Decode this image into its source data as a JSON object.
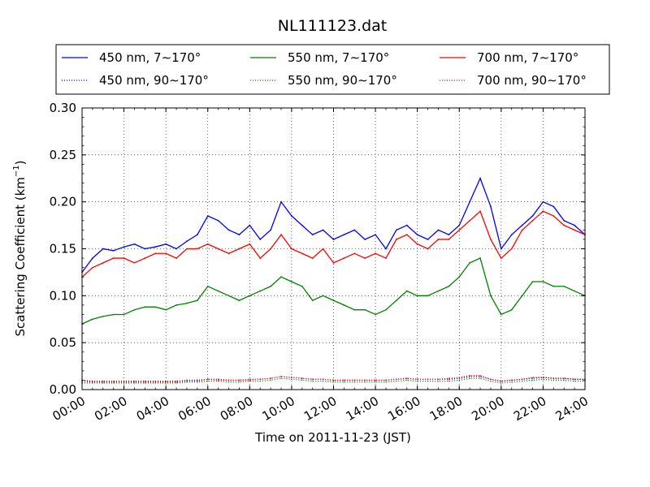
{
  "chart_data": {
    "type": "line",
    "title": "NL111123.dat",
    "xlabel": "Time on 2011-11-23 (JST)",
    "ylabel": "Scattering Coefficient (km",
    "ylabel_sup": "−1",
    "ylabel_tail": ")",
    "xlim": [
      0,
      24
    ],
    "ylim": [
      0,
      0.3
    ],
    "x_unit": "hours",
    "grid": true,
    "grid_style": "dotted",
    "legend_placement": "top, above plot, 3 columns",
    "x_ticks": [
      {
        "value": 0,
        "label": "00:00"
      },
      {
        "value": 2,
        "label": "02:00"
      },
      {
        "value": 4,
        "label": "04:00"
      },
      {
        "value": 6,
        "label": "06:00"
      },
      {
        "value": 8,
        "label": "08:00"
      },
      {
        "value": 10,
        "label": "10:00"
      },
      {
        "value": 12,
        "label": "12:00"
      },
      {
        "value": 14,
        "label": "14:00"
      },
      {
        "value": 16,
        "label": "16:00"
      },
      {
        "value": 18,
        "label": "18:00"
      },
      {
        "value": 20,
        "label": "20:00"
      },
      {
        "value": 22,
        "label": "22:00"
      },
      {
        "value": 24,
        "label": "24:00"
      }
    ],
    "y_ticks": [
      {
        "value": 0,
        "label": "0.00"
      },
      {
        "value": 0.05,
        "label": "0.05"
      },
      {
        "value": 0.1,
        "label": "0.10"
      },
      {
        "value": 0.15,
        "label": "0.15"
      },
      {
        "value": 0.2,
        "label": "0.20"
      },
      {
        "value": 0.25,
        "label": "0.25"
      },
      {
        "value": 0.3,
        "label": "0.30"
      }
    ],
    "x": [
      0,
      0.5,
      1,
      1.5,
      2,
      2.5,
      3,
      3.5,
      4,
      4.5,
      5,
      5.5,
      6,
      6.5,
      7,
      7.5,
      8,
      8.5,
      9,
      9.5,
      10,
      10.5,
      11,
      11.5,
      12,
      12.5,
      13,
      13.5,
      14,
      14.5,
      15,
      15.5,
      16,
      16.5,
      17,
      17.5,
      18,
      18.5,
      19,
      19.5,
      20,
      20.5,
      21,
      21.5,
      22,
      22.5,
      23,
      23.5,
      24
    ],
    "series": [
      {
        "name": "450 nm, 7∼170°",
        "color": "#0000ff",
        "style": "solid",
        "values": [
          0.125,
          0.14,
          0.15,
          0.148,
          0.152,
          0.155,
          0.15,
          0.152,
          0.155,
          0.15,
          0.158,
          0.165,
          0.185,
          0.18,
          0.17,
          0.165,
          0.175,
          0.16,
          0.17,
          0.2,
          0.185,
          0.175,
          0.165,
          0.17,
          0.16,
          0.165,
          0.17,
          0.16,
          0.165,
          0.15,
          0.17,
          0.175,
          0.165,
          0.16,
          0.17,
          0.165,
          0.175,
          0.2,
          0.225,
          0.195,
          0.15,
          0.165,
          0.175,
          0.185,
          0.2,
          0.195,
          0.18,
          0.175,
          0.165
        ]
      },
      {
        "name": "550 nm, 7∼170°",
        "color": "#008000",
        "style": "solid",
        "values": [
          0.07,
          0.075,
          0.078,
          0.08,
          0.08,
          0.085,
          0.088,
          0.088,
          0.085,
          0.09,
          0.092,
          0.095,
          0.11,
          0.105,
          0.1,
          0.095,
          0.1,
          0.105,
          0.11,
          0.12,
          0.115,
          0.11,
          0.095,
          0.1,
          0.095,
          0.09,
          0.085,
          0.085,
          0.08,
          0.085,
          0.095,
          0.105,
          0.1,
          0.1,
          0.105,
          0.11,
          0.12,
          0.135,
          0.14,
          0.1,
          0.08,
          0.085,
          0.1,
          0.115,
          0.115,
          0.11,
          0.11,
          0.105,
          0.1
        ]
      },
      {
        "name": "700 nm, 7∼170°",
        "color": "#ff0000",
        "style": "solid",
        "values": [
          0.12,
          0.13,
          0.135,
          0.14,
          0.14,
          0.135,
          0.14,
          0.145,
          0.145,
          0.14,
          0.15,
          0.15,
          0.155,
          0.15,
          0.145,
          0.15,
          0.155,
          0.14,
          0.15,
          0.165,
          0.15,
          0.145,
          0.14,
          0.15,
          0.135,
          0.14,
          0.145,
          0.14,
          0.145,
          0.14,
          0.16,
          0.165,
          0.155,
          0.15,
          0.16,
          0.16,
          0.17,
          0.18,
          0.19,
          0.16,
          0.14,
          0.15,
          0.17,
          0.18,
          0.19,
          0.185,
          0.175,
          0.17,
          0.165
        ]
      },
      {
        "name": "450 nm, 90∼170°",
        "color": "#0000ff",
        "style": "dotted",
        "values": [
          0.01,
          0.009,
          0.009,
          0.009,
          0.009,
          0.009,
          0.009,
          0.009,
          0.009,
          0.009,
          0.01,
          0.01,
          0.011,
          0.011,
          0.01,
          0.01,
          0.011,
          0.011,
          0.012,
          0.014,
          0.013,
          0.012,
          0.011,
          0.011,
          0.01,
          0.01,
          0.01,
          0.01,
          0.01,
          0.01,
          0.011,
          0.012,
          0.011,
          0.011,
          0.011,
          0.011,
          0.012,
          0.014,
          0.014,
          0.011,
          0.009,
          0.01,
          0.011,
          0.012,
          0.013,
          0.012,
          0.012,
          0.011,
          0.011
        ]
      },
      {
        "name": "550 nm, 90∼170°",
        "color": "#008000",
        "style": "dotted",
        "values": [
          0.007,
          0.007,
          0.007,
          0.007,
          0.007,
          0.007,
          0.007,
          0.007,
          0.007,
          0.007,
          0.008,
          0.008,
          0.009,
          0.009,
          0.008,
          0.008,
          0.009,
          0.009,
          0.01,
          0.012,
          0.011,
          0.01,
          0.009,
          0.009,
          0.008,
          0.008,
          0.008,
          0.008,
          0.008,
          0.008,
          0.009,
          0.01,
          0.009,
          0.009,
          0.009,
          0.009,
          0.01,
          0.012,
          0.012,
          0.009,
          0.007,
          0.008,
          0.009,
          0.01,
          0.011,
          0.01,
          0.01,
          0.009,
          0.009
        ]
      },
      {
        "name": "700 nm, 90∼170°",
        "color": "#ff0000",
        "style": "dotted",
        "values": [
          0.009,
          0.008,
          0.008,
          0.008,
          0.008,
          0.008,
          0.008,
          0.008,
          0.008,
          0.008,
          0.009,
          0.009,
          0.011,
          0.01,
          0.01,
          0.01,
          0.01,
          0.011,
          0.012,
          0.014,
          0.013,
          0.012,
          0.011,
          0.011,
          0.01,
          0.01,
          0.01,
          0.01,
          0.01,
          0.01,
          0.011,
          0.012,
          0.011,
          0.011,
          0.011,
          0.012,
          0.013,
          0.015,
          0.015,
          0.011,
          0.009,
          0.01,
          0.011,
          0.013,
          0.013,
          0.012,
          0.012,
          0.011,
          0.011
        ]
      }
    ],
    "legend_order": [
      0,
      1,
      2,
      3,
      4,
      5
    ]
  }
}
